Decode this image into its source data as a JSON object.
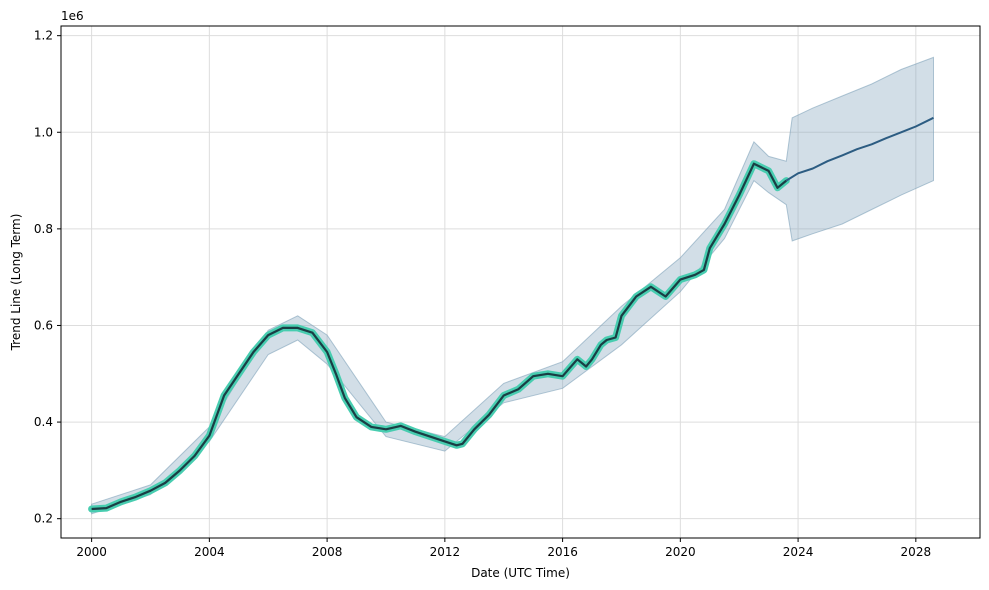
{
  "chart_data": {
    "type": "line",
    "title": "",
    "xlabel": "Date (UTC Time)",
    "ylabel": "Trend Line (Long Term)",
    "y_offset_text": "1e6",
    "xlim": [
      1998.96,
      2030.18
    ],
    "ylim": [
      160000,
      1220000
    ],
    "grid": true,
    "x_ticks": [
      2000,
      2004,
      2008,
      2012,
      2016,
      2020,
      2024,
      2028
    ],
    "x_tick_labels": [
      "2000",
      "2004",
      "2008",
      "2012",
      "2016",
      "2020",
      "2024",
      "2028"
    ],
    "y_ticks": [
      200000,
      400000,
      600000,
      800000,
      1000000,
      1200000
    ],
    "y_tick_labels": [
      "0.2",
      "0.4",
      "0.6",
      "0.8",
      "1.0",
      "1.2"
    ],
    "colors": {
      "historical_line": "#1a3d44",
      "historical_glow": "#48cdb0",
      "forecast_line": "#2c5c82",
      "band_fill": "#7fa1b9",
      "grid": "#dddddd"
    },
    "series": [
      {
        "name": "trend",
        "x": [
          2000.0,
          2000.5,
          2001.0,
          2001.5,
          2002.0,
          2002.5,
          2003.0,
          2003.5,
          2004.0,
          2004.5,
          2005.0,
          2005.5,
          2006.0,
          2006.5,
          2007.0,
          2007.5,
          2008.0,
          2008.3,
          2008.6,
          2009.0,
          2009.5,
          2010.0,
          2010.5,
          2011.0,
          2011.5,
          2012.0,
          2012.4,
          2012.6,
          2013.0,
          2013.5,
          2014.0,
          2014.5,
          2015.0,
          2015.5,
          2016.0,
          2016.5,
          2016.8,
          2017.0,
          2017.3,
          2017.5,
          2017.8,
          2018.0,
          2018.5,
          2019.0,
          2019.5,
          2020.0,
          2020.5,
          2020.8,
          2021.0,
          2021.5,
          2022.0,
          2022.5,
          2023.0,
          2023.3,
          2023.6
        ],
        "y": [
          220000,
          222000,
          235000,
          245000,
          258000,
          274000,
          300000,
          330000,
          372000,
          455000,
          500000,
          545000,
          580000,
          595000,
          595000,
          585000,
          545000,
          500000,
          450000,
          410000,
          390000,
          385000,
          392000,
          380000,
          370000,
          360000,
          352000,
          355000,
          385000,
          415000,
          455000,
          468000,
          495000,
          500000,
          495000,
          530000,
          515000,
          530000,
          560000,
          570000,
          575000,
          620000,
          660000,
          680000,
          660000,
          695000,
          705000,
          715000,
          760000,
          810000,
          870000,
          935000,
          920000,
          885000,
          900000
        ]
      },
      {
        "name": "forecast",
        "x": [
          2023.6,
          2024.0,
          2024.5,
          2025.0,
          2025.5,
          2026.0,
          2026.5,
          2027.0,
          2027.5,
          2028.0,
          2028.6
        ],
        "y": [
          900000,
          915000,
          925000,
          940000,
          952000,
          965000,
          975000,
          988000,
          1000000,
          1012000,
          1030000
        ]
      }
    ],
    "band": {
      "x": [
        2000.0,
        2002.0,
        2004.0,
        2006.0,
        2007.0,
        2008.0,
        2010.0,
        2012.0,
        2014.0,
        2016.0,
        2018.0,
        2020.0,
        2021.5,
        2022.5,
        2023.0,
        2023.6,
        2023.8,
        2024.5,
        2025.5,
        2026.5,
        2027.5,
        2028.6
      ],
      "lower": [
        210000,
        250000,
        360000,
        540000,
        570000,
        520000,
        370000,
        340000,
        440000,
        470000,
        560000,
        670000,
        780000,
        900000,
        875000,
        850000,
        775000,
        790000,
        810000,
        840000,
        870000,
        900000
      ],
      "upper": [
        230000,
        270000,
        390000,
        590000,
        620000,
        580000,
        400000,
        370000,
        480000,
        525000,
        640000,
        740000,
        840000,
        980000,
        950000,
        940000,
        1030000,
        1050000,
        1075000,
        1100000,
        1130000,
        1155000
      ]
    }
  }
}
